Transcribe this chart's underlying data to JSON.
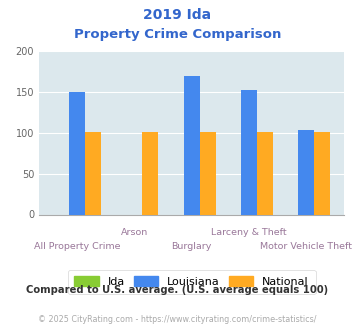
{
  "title_line1": "2019 Ida",
  "title_line2": "Property Crime Comparison",
  "categories": [
    "All Property Crime",
    "Arson",
    "Burglary",
    "Larceny & Theft",
    "Motor Vehicle Theft"
  ],
  "ida_values": [
    0,
    0,
    0,
    0,
    0
  ],
  "louisiana_values": [
    150,
    0,
    170,
    153,
    104
  ],
  "national_values": [
    101,
    101,
    101,
    101,
    101
  ],
  "ylim": [
    0,
    200
  ],
  "yticks": [
    0,
    50,
    100,
    150,
    200
  ],
  "bar_width": 0.28,
  "ida_color": "#88cc33",
  "louisiana_color": "#4488ee",
  "national_color": "#ffaa22",
  "bg_color": "#dce8ed",
  "title_color": "#3366cc",
  "label_color": "#997799",
  "footer_text": "Compared to U.S. average. (U.S. average equals 100)",
  "copyright_text": "© 2025 CityRating.com - https://www.cityrating.com/crime-statistics/",
  "footer_color": "#333333",
  "copyright_color": "#aaaaaa",
  "legend_labels": [
    "Ida",
    "Louisiana",
    "National"
  ],
  "top_labels": {
    "1": "Arson",
    "3": "Larceny & Theft"
  },
  "bottom_labels": {
    "0": "All Property Crime",
    "2": "Burglary",
    "4": "Motor Vehicle Theft"
  }
}
